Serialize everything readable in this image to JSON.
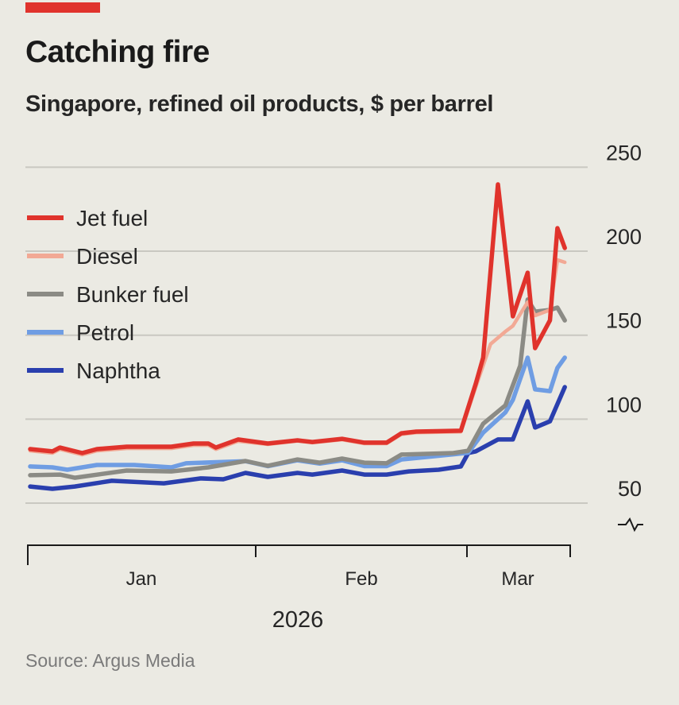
{
  "header": {
    "title": "Catching fire",
    "subtitle": "Singapore, refined oil products, $ per barrel"
  },
  "footer": {
    "source": "Source: Argus Media"
  },
  "colors": {
    "accent": "#e0332c",
    "background": "#ebeae3",
    "grid": "#c9c8c1"
  },
  "chart_data": {
    "type": "line",
    "title": "Catching fire",
    "subtitle": "Singapore, refined oil products, $ per barrel",
    "xlabel": "2026",
    "ylabel": "",
    "ylim": [
      50,
      250
    ],
    "y_ticks": [
      "250",
      "200",
      "150",
      "100",
      "50"
    ],
    "y_tick_values": [
      250,
      200,
      150,
      100,
      50
    ],
    "y_axis_break": true,
    "y_axis_position": "right",
    "x_range": [
      "2026-01-01",
      "2026-03-15"
    ],
    "x_ticks": [
      {
        "label": "Jan",
        "date": "2026-01-16"
      },
      {
        "label": "Feb",
        "date": "2026-02-15"
      },
      {
        "label": "Mar",
        "date": "2026-03-08"
      }
    ],
    "x_year_label": "2026",
    "grid": true,
    "legend": "top-left",
    "series": [
      {
        "name": "Jet fuel",
        "color": "#e0332c",
        "points": [
          [
            "2026-01-01",
            82.2
          ],
          [
            "2026-01-04",
            80.8
          ],
          [
            "2026-01-05",
            83.1
          ],
          [
            "2026-01-08",
            79.8
          ],
          [
            "2026-01-10",
            82.2
          ],
          [
            "2026-01-14",
            83.6
          ],
          [
            "2026-01-20",
            83.6
          ],
          [
            "2026-01-23",
            85.5
          ],
          [
            "2026-01-25",
            85.5
          ],
          [
            "2026-01-26",
            83.1
          ],
          [
            "2026-01-29",
            87.9
          ],
          [
            "2026-02-02",
            85.5
          ],
          [
            "2026-02-06",
            87.4
          ],
          [
            "2026-02-08",
            86.4
          ],
          [
            "2026-02-12",
            88.3
          ],
          [
            "2026-02-15",
            86.0
          ],
          [
            "2026-02-18",
            86.0
          ],
          [
            "2026-02-20",
            91.6
          ],
          [
            "2026-02-22",
            92.6
          ],
          [
            "2026-02-28",
            93.1
          ],
          [
            "2026-03-02",
            121.0
          ],
          [
            "2026-03-03",
            136.6
          ],
          [
            "2026-03-05",
            239.8
          ],
          [
            "2026-03-07",
            161.2
          ],
          [
            "2026-03-09",
            187.2
          ],
          [
            "2026-03-10",
            142.3
          ],
          [
            "2026-03-12",
            158.8
          ],
          [
            "2026-03-13",
            213.7
          ],
          [
            "2026-03-14",
            201.9
          ]
        ]
      },
      {
        "name": "Diesel",
        "color": "#f2a995",
        "points": [
          [
            "2026-01-01",
            81.2
          ],
          [
            "2026-01-04",
            79.8
          ],
          [
            "2026-01-05",
            82.1
          ],
          [
            "2026-01-08",
            78.8
          ],
          [
            "2026-01-10",
            81.2
          ],
          [
            "2026-01-14",
            82.6
          ],
          [
            "2026-01-20",
            82.6
          ],
          [
            "2026-01-23",
            84.5
          ],
          [
            "2026-01-25",
            84.5
          ],
          [
            "2026-01-26",
            82.1
          ],
          [
            "2026-01-29",
            86.9
          ],
          [
            "2026-02-02",
            85.0
          ],
          [
            "2026-02-06",
            87.0
          ],
          [
            "2026-02-08",
            86.0
          ],
          [
            "2026-02-12",
            87.8
          ],
          [
            "2026-02-15",
            85.5
          ],
          [
            "2026-02-18",
            85.5
          ],
          [
            "2026-02-20",
            91.0
          ],
          [
            "2026-02-22",
            92.0
          ],
          [
            "2026-02-28",
            92.5
          ],
          [
            "2026-03-02",
            119.1
          ],
          [
            "2026-03-04",
            144.7
          ],
          [
            "2026-03-06",
            152.2
          ],
          [
            "2026-03-07",
            155.5
          ],
          [
            "2026-03-09",
            169.7
          ],
          [
            "2026-03-10",
            161.7
          ],
          [
            "2026-03-12",
            165.0
          ],
          [
            "2026-03-13",
            194.8
          ],
          [
            "2026-03-14",
            193.4
          ]
        ]
      },
      {
        "name": "Bunker fuel",
        "color": "#8b8b85",
        "points": [
          [
            "2026-01-01",
            66.6
          ],
          [
            "2026-01-05",
            67.0
          ],
          [
            "2026-01-07",
            65.1
          ],
          [
            "2026-01-14",
            69.4
          ],
          [
            "2026-01-20",
            68.9
          ],
          [
            "2026-01-25",
            71.3
          ],
          [
            "2026-01-30",
            75.1
          ],
          [
            "2026-02-02",
            72.2
          ],
          [
            "2026-02-06",
            76.0
          ],
          [
            "2026-02-09",
            74.1
          ],
          [
            "2026-02-12",
            76.5
          ],
          [
            "2026-02-15",
            74.1
          ],
          [
            "2026-02-18",
            73.7
          ],
          [
            "2026-02-20",
            78.9
          ],
          [
            "2026-02-27",
            79.8
          ],
          [
            "2026-03-01",
            81.2
          ],
          [
            "2026-03-03",
            97.3
          ],
          [
            "2026-03-06",
            108.2
          ],
          [
            "2026-03-08",
            131.9
          ],
          [
            "2026-03-09",
            171.2
          ],
          [
            "2026-03-10",
            164.0
          ],
          [
            "2026-03-12",
            165.0
          ],
          [
            "2026-03-13",
            166.4
          ],
          [
            "2026-03-14",
            158.8
          ]
        ]
      },
      {
        "name": "Petrol",
        "color": "#6f9de3",
        "points": [
          [
            "2026-01-01",
            71.8
          ],
          [
            "2026-01-04",
            71.3
          ],
          [
            "2026-01-06",
            69.9
          ],
          [
            "2026-01-10",
            72.7
          ],
          [
            "2026-01-15",
            72.7
          ],
          [
            "2026-01-20",
            71.3
          ],
          [
            "2026-01-22",
            73.7
          ],
          [
            "2026-01-30",
            75.0
          ],
          [
            "2026-02-02",
            72.0
          ],
          [
            "2026-02-06",
            75.5
          ],
          [
            "2026-02-09",
            73.5
          ],
          [
            "2026-02-12",
            75.5
          ],
          [
            "2026-02-15",
            72.0
          ],
          [
            "2026-02-18",
            72.0
          ],
          [
            "2026-02-20",
            76.0
          ],
          [
            "2026-02-27",
            79.0
          ],
          [
            "2026-03-01",
            80.0
          ],
          [
            "2026-03-03",
            92.0
          ],
          [
            "2026-03-06",
            104.0
          ],
          [
            "2026-03-07",
            111.5
          ],
          [
            "2026-03-09",
            136.6
          ],
          [
            "2026-03-10",
            117.7
          ],
          [
            "2026-03-12",
            116.7
          ],
          [
            "2026-03-13",
            130.5
          ],
          [
            "2026-03-14",
            136.6
          ]
        ]
      },
      {
        "name": "Naphtha",
        "color": "#2a3fae",
        "points": [
          [
            "2026-01-01",
            59.9
          ],
          [
            "2026-01-04",
            58.5
          ],
          [
            "2026-01-07",
            59.9
          ],
          [
            "2026-01-12",
            63.3
          ],
          [
            "2026-01-19",
            61.8
          ],
          [
            "2026-01-24",
            64.7
          ],
          [
            "2026-01-27",
            64.2
          ],
          [
            "2026-01-30",
            68.0
          ],
          [
            "2026-02-02",
            65.6
          ],
          [
            "2026-02-06",
            68.0
          ],
          [
            "2026-02-08",
            67.0
          ],
          [
            "2026-02-12",
            69.4
          ],
          [
            "2026-02-15",
            67.0
          ],
          [
            "2026-02-18",
            67.0
          ],
          [
            "2026-02-21",
            68.9
          ],
          [
            "2026-02-25",
            69.9
          ],
          [
            "2026-02-28",
            71.8
          ],
          [
            "2026-03-01",
            79.8
          ],
          [
            "2026-03-02",
            80.8
          ],
          [
            "2026-03-05",
            87.9
          ],
          [
            "2026-03-07",
            87.9
          ],
          [
            "2026-03-09",
            110.6
          ],
          [
            "2026-03-10",
            95.0
          ],
          [
            "2026-03-12",
            98.7
          ],
          [
            "2026-03-14",
            119.1
          ]
        ]
      }
    ]
  }
}
